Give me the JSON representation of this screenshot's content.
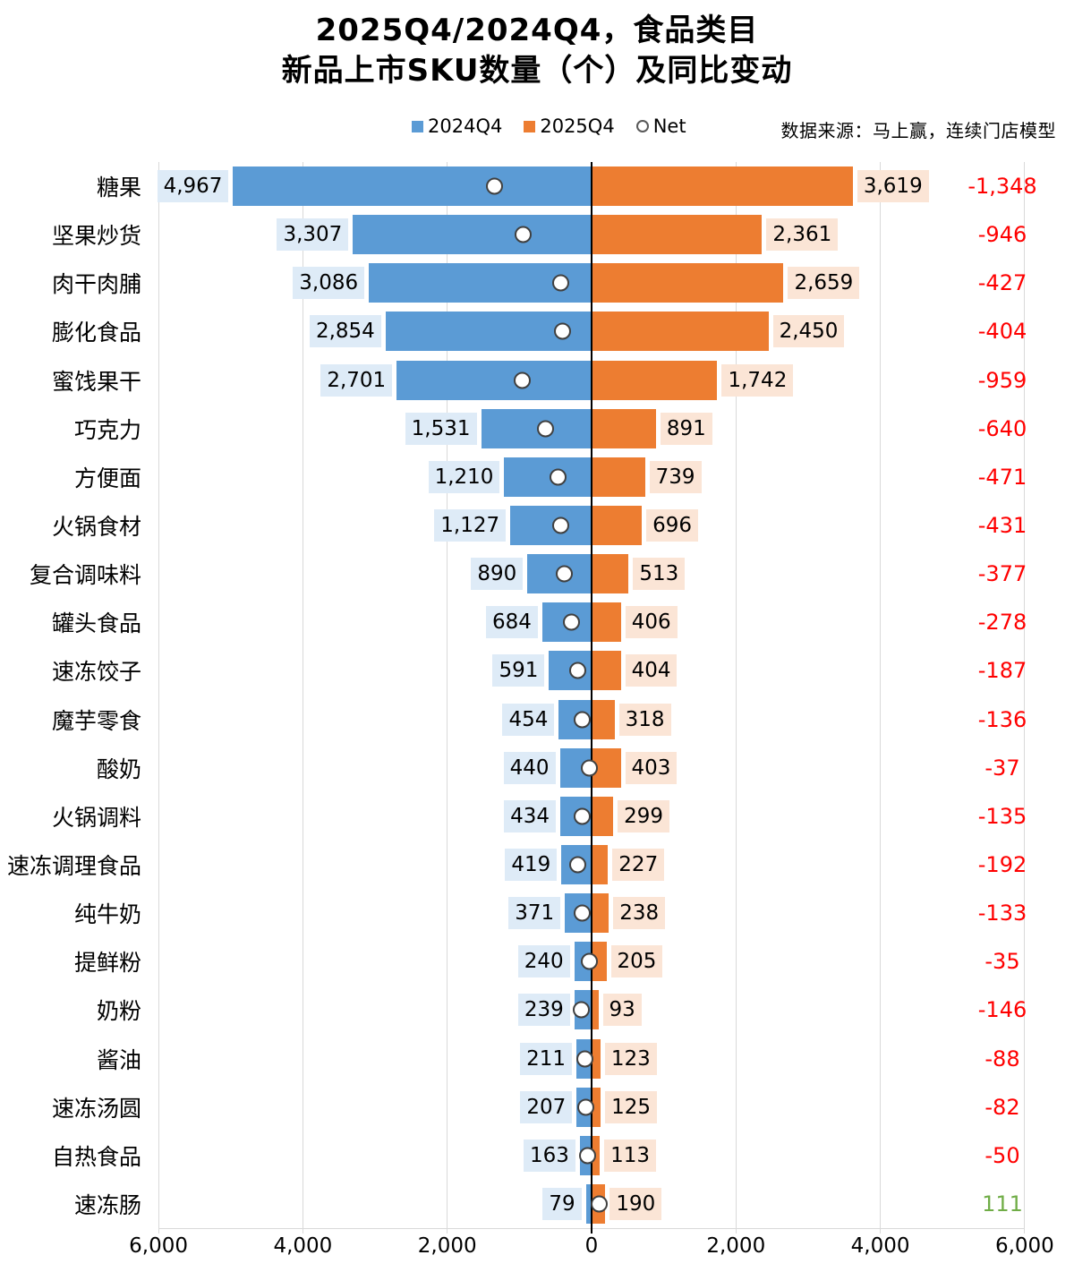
{
  "title": {
    "line1": "2025Q4/2024Q4，食品类目",
    "line2": "新品上市SKU数量（个）及同比变动"
  },
  "source_note": "数据来源：马上赢，连续门店模型",
  "legend": [
    {
      "label": "2024Q4",
      "marker": "square",
      "color": "#5B9BD5"
    },
    {
      "label": "2025Q4",
      "marker": "square",
      "color": "#ED7D31"
    },
    {
      "label": "Net",
      "marker": "circle"
    }
  ],
  "chart_data": {
    "type": "bar",
    "orientation": "diverging-horizontal",
    "title": "2025Q4/2024Q4，食品类目 新品上市SKU数量（个）及同比变动",
    "categories": [
      "糖果",
      "坚果炒货",
      "肉干肉脯",
      "膨化食品",
      "蜜饯果干",
      "巧克力",
      "方便面",
      "火锅食材",
      "复合调味料",
      "罐头食品",
      "速冻饺子",
      "魔芋零食",
      "酸奶",
      "火锅调料",
      "速冻调理食品",
      "纯牛奶",
      "提鲜粉",
      "奶粉",
      "酱油",
      "速冻汤圆",
      "自热食品",
      "速冻肠"
    ],
    "series": [
      {
        "name": "2024Q4",
        "side": "left",
        "color": "#5B9BD5",
        "label_bg": "#DEEBF7",
        "values": [
          4967,
          3307,
          3086,
          2854,
          2701,
          1531,
          1210,
          1127,
          890,
          684,
          591,
          454,
          440,
          434,
          419,
          371,
          240,
          239,
          211,
          207,
          163,
          79
        ]
      },
      {
        "name": "2025Q4",
        "side": "right",
        "color": "#ED7D31",
        "label_bg": "#FBE5D6",
        "values": [
          3619,
          2361,
          2659,
          2450,
          1742,
          891,
          739,
          696,
          513,
          406,
          404,
          318,
          403,
          299,
          227,
          238,
          205,
          93,
          123,
          125,
          113,
          190
        ]
      },
      {
        "name": "Net",
        "marker": "circle",
        "marker_fill": "#FFFFFF",
        "marker_border": "#404040",
        "values": [
          -1348,
          -946,
          -427,
          -404,
          -959,
          -640,
          -471,
          -431,
          -377,
          -278,
          -187,
          -136,
          -37,
          -135,
          -192,
          -133,
          -35,
          -146,
          -88,
          -82,
          -50,
          111
        ]
      }
    ],
    "net_colors": {
      "negative": "#FF0000",
      "positive": "#70AD47"
    },
    "axis": {
      "ticks": [
        "6,000",
        "4,000",
        "2,000",
        "0",
        "2,000",
        "4,000",
        "6,000"
      ],
      "tick_values": [
        -6000,
        -4000,
        -2000,
        0,
        2000,
        4000,
        6000
      ],
      "range": [
        -6000,
        6000
      ],
      "gridline_color": "#D9D9D9",
      "zero_line_color": "#000000"
    },
    "legend_position": "top",
    "grid": true
  }
}
